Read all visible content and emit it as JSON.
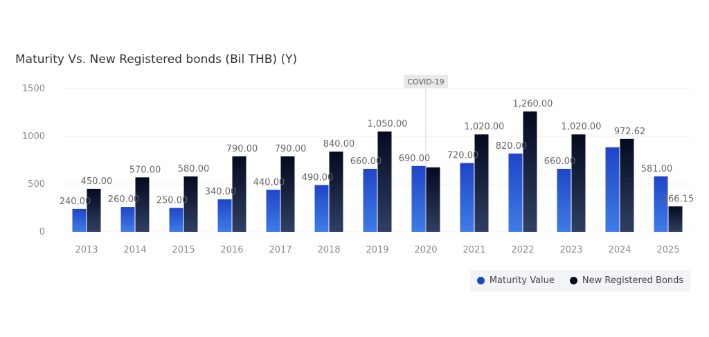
{
  "colors": {
    "maturity_top": "#1f45c8",
    "maturity_bottom": "#3f7ce6",
    "new_top": "#050a1f",
    "new_bottom": "#2f3f63",
    "grid": "#f0f0f0",
    "annotation_bg": "#e9e9e9",
    "annotation_line": "#d0d0d0"
  },
  "chart_data": {
    "type": "bar",
    "title": "Maturity Vs. New Registered bonds (Bil THB) (Y)",
    "categories": [
      "2013",
      "2014",
      "2015",
      "2016",
      "2017",
      "2018",
      "2019",
      "2020",
      "2021",
      "2022",
      "2023",
      "2024",
      "2025"
    ],
    "series": [
      {
        "name": "Maturity Value",
        "values": [
          240,
          260,
          250,
          340,
          440,
          490,
          660,
          690,
          720,
          820,
          660,
          885,
          581
        ],
        "labels": [
          "240.00",
          "260.00",
          "250.00",
          "340.00",
          "440.00",
          "490.00",
          "660.00",
          "690.00",
          "720.00",
          "820.00",
          "660.00",
          "",
          "581.00"
        ]
      },
      {
        "name": "New Registered Bonds",
        "values": [
          450,
          570,
          580,
          790,
          790,
          840,
          1050,
          675,
          1020,
          1260,
          1020,
          972.62,
          266.15
        ],
        "labels": [
          "450.00",
          "570.00",
          "580.00",
          "790.00",
          "790.00",
          "840.00",
          "1,050.00",
          "",
          "1,020.00",
          "1,260.00",
          "1,020.00",
          "972.62",
          "266.15"
        ]
      }
    ],
    "ylim": [
      0,
      1500
    ],
    "yticks": [
      0,
      500,
      1000,
      1500
    ],
    "grid": true,
    "legend_position": "bottom-right",
    "annotation": {
      "label": "COVID-19",
      "category": "2020"
    }
  },
  "legend": {
    "maturity_label": "Maturity Value",
    "new_label": "New Registered Bonds"
  }
}
